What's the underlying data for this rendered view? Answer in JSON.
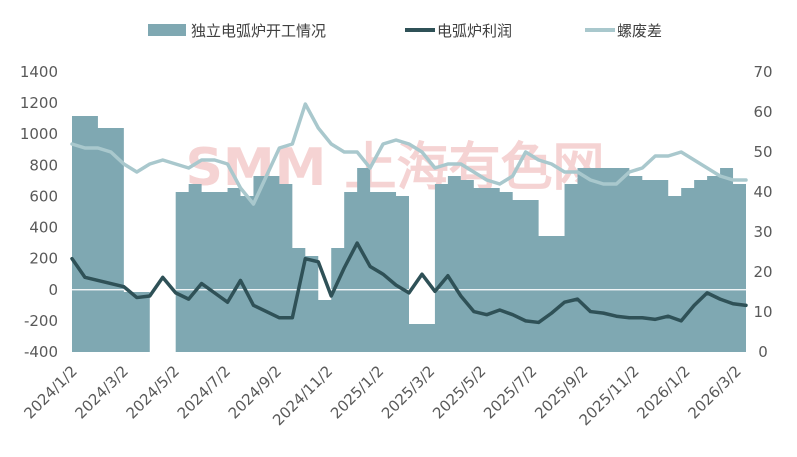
{
  "chart_data": {
    "type": "area+line",
    "title": "",
    "legend": [
      {
        "name": "独立电弧炉开工情况",
        "marker": "area",
        "color": "#7fa8b2"
      },
      {
        "name": "电弧炉利润",
        "marker": "line",
        "color": "#2f5157"
      },
      {
        "name": "螺废差",
        "marker": "line",
        "color": "#a9c8cd"
      }
    ],
    "legend_position": "top",
    "x_tick_labels": [
      "2024/1/2",
      "2024/3/2",
      "2024/5/2",
      "2024/7/2",
      "2024/9/2",
      "2024/11/2",
      "2025/1/2",
      "2025/3/2",
      "2025/5/2",
      "2025/7/2",
      "2025/9/2",
      "2025/11/2",
      "2026/1/2",
      "2026/3/2"
    ],
    "y_left": {
      "min": -400,
      "max": 1400,
      "ticks": [
        "1400",
        "1200",
        "1000",
        "800",
        "600",
        "400",
        "200",
        "0",
        "-200",
        "-400"
      ]
    },
    "y_right": {
      "min": 0,
      "max": 70,
      "ticks": [
        "70",
        "60",
        "50",
        "40",
        "30",
        "20",
        "10",
        "0"
      ]
    },
    "watermark": "SMM 上海有色网",
    "series": [
      {
        "name": "独立电弧炉开工情况",
        "axis": "right",
        "color": "#7fa8b2",
        "x": [
          0,
          1,
          2,
          3,
          4,
          4.5,
          5,
          5.5,
          6,
          6.5,
          7,
          7.5,
          8,
          8.5,
          9,
          9.5,
          10,
          10.5,
          11,
          11.5,
          12,
          12.5,
          13,
          13.5,
          14,
          14.5,
          15,
          15.5,
          16,
          16.5,
          17,
          17.5,
          18,
          18.5,
          19,
          19.5,
          20,
          20.5,
          21,
          21.5,
          22,
          22.5,
          23,
          23.5,
          24,
          24.5,
          25,
          25.5,
          26
        ],
        "values": [
          59,
          56,
          15,
          0,
          40,
          42,
          40,
          40,
          41,
          39,
          44,
          44,
          42,
          26,
          24,
          13,
          26,
          40,
          46,
          40,
          40,
          39,
          7,
          7,
          42,
          44,
          43,
          41,
          41,
          40,
          38,
          38,
          29,
          29,
          42,
          46,
          46,
          46,
          46,
          44,
          43,
          43,
          39,
          41,
          43,
          44,
          46,
          42,
          0
        ]
      },
      {
        "name": "电弧炉利润",
        "axis": "left",
        "color": "#2f5157",
        "x": [
          0,
          0.5,
          1,
          1.5,
          2,
          2.5,
          3,
          3.5,
          4,
          4.5,
          5,
          5.5,
          6,
          6.5,
          7,
          7.5,
          8,
          8.5,
          9,
          9.5,
          10,
          10.5,
          11,
          11.5,
          12,
          12.5,
          13,
          13.5,
          14,
          14.5,
          15,
          15.5,
          16,
          16.5,
          17,
          17.5,
          18,
          18.5,
          19,
          19.5,
          20,
          20.5,
          21,
          21.5,
          22,
          22.5,
          23,
          23.5,
          24,
          24.5,
          25,
          25.5,
          26
        ],
        "values": [
          200,
          80,
          60,
          40,
          20,
          -50,
          -40,
          80,
          -20,
          -60,
          40,
          -20,
          -80,
          60,
          -100,
          -140,
          -180,
          -180,
          200,
          180,
          -40,
          140,
          300,
          150,
          100,
          30,
          -20,
          100,
          -10,
          90,
          -40,
          -140,
          -160,
          -130,
          -160,
          -200,
          -210,
          -150,
          -80,
          -60,
          -140,
          -150,
          -170,
          -180,
          -180,
          -190,
          -170,
          -200,
          -100,
          -20,
          -60,
          -90,
          -100
        ]
      },
      {
        "name": "螺废差",
        "axis": "right",
        "color": "#a9c8cd",
        "x": [
          0,
          0.5,
          1,
          1.5,
          2,
          2.5,
          3,
          3.5,
          4,
          4.5,
          5,
          5.5,
          6,
          6.5,
          7,
          7.5,
          8,
          8.5,
          9,
          9.5,
          10,
          10.5,
          11,
          11.5,
          12,
          12.5,
          13,
          13.5,
          14,
          14.5,
          15,
          15.5,
          16,
          16.5,
          17,
          17.5,
          18,
          18.5,
          19,
          19.5,
          20,
          20.5,
          21,
          21.5,
          22,
          22.5,
          23,
          23.5,
          24,
          24.5,
          25,
          25.5,
          26
        ],
        "values": [
          52,
          51,
          51,
          50,
          47,
          45,
          47,
          48,
          47,
          46,
          48,
          48,
          47,
          41,
          37,
          44,
          51,
          52,
          62,
          56,
          52,
          50,
          50,
          46,
          52,
          53,
          52,
          50,
          46,
          47,
          47,
          45,
          43,
          42,
          44,
          50,
          48,
          47,
          45,
          45,
          43,
          42,
          42,
          45,
          46,
          49,
          49,
          50,
          48,
          46,
          44,
          43,
          43
        ]
      }
    ]
  }
}
